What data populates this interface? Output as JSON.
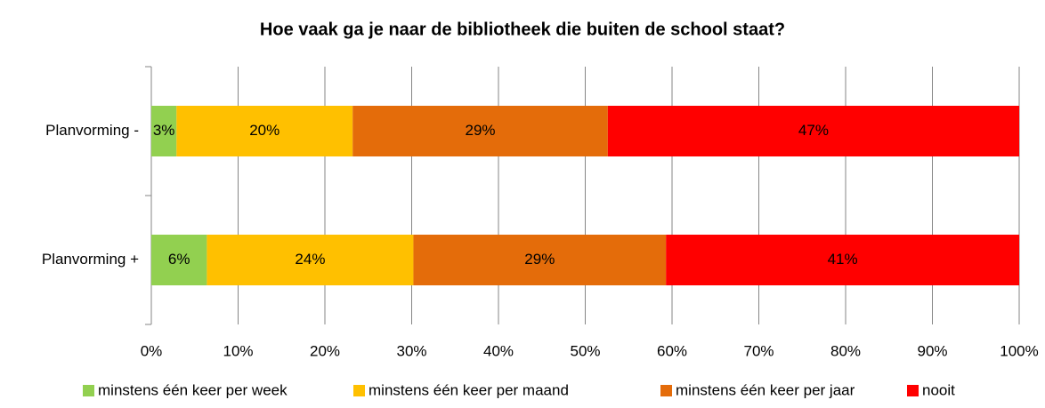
{
  "chart_data": {
    "type": "stacked_barh",
    "title": "Hoe vaak ga je naar de bibliotheek die buiten de school staat?",
    "categories": [
      "Planvorming -",
      "Planvorming +"
    ],
    "series": [
      {
        "name": "minstens één keer per week",
        "color": "#92d050",
        "values": [
          2.9,
          6.4
        ],
        "value_labels": [
          "3%",
          "6%"
        ]
      },
      {
        "name": "minstens één keer per maand",
        "color": "#ffc000",
        "values": [
          20.3,
          23.8
        ],
        "value_labels": [
          "20%",
          "24%"
        ]
      },
      {
        "name": "minstens één keer per jaar",
        "color": "#e46c0a",
        "values": [
          29.4,
          29.1
        ],
        "value_labels": [
          "29%",
          "29%"
        ]
      },
      {
        "name": "nooit",
        "color": "#ff0000",
        "values": [
          47.4,
          40.7
        ],
        "value_labels": [
          "47%",
          "41%"
        ]
      }
    ],
    "xlim": [
      0,
      100
    ],
    "xticks": [
      {
        "value": 0,
        "label": "0%"
      },
      {
        "value": 10,
        "label": "10%"
      },
      {
        "value": 20,
        "label": "20%"
      },
      {
        "value": 30,
        "label": "30%"
      },
      {
        "value": 40,
        "label": "40%"
      },
      {
        "value": 50,
        "label": "50%"
      },
      {
        "value": 60,
        "label": "60%"
      },
      {
        "value": 70,
        "label": "70%"
      },
      {
        "value": 80,
        "label": "80%"
      },
      {
        "value": 90,
        "label": "90%"
      },
      {
        "value": 100,
        "label": "100%"
      }
    ],
    "grid": true,
    "legend": "bottom"
  }
}
